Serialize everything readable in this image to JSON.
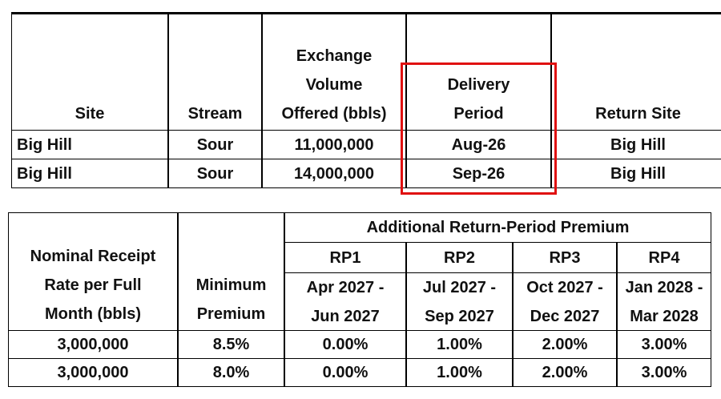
{
  "table1": {
    "header": [
      [
        "Site"
      ],
      [
        "Stream"
      ],
      [
        "Exchange",
        "Volume",
        "Offered (bbls)"
      ],
      [
        "Delivery",
        "Period"
      ],
      [
        "Return Site"
      ]
    ],
    "rows": [
      [
        "Big Hill",
        "Sour",
        "11,000,000",
        "Aug-26",
        "Big Hill"
      ],
      [
        "Big Hill",
        "Sour",
        "14,000,000",
        "Sep-26",
        "Big Hill"
      ]
    ]
  },
  "table2": {
    "header": [
      [
        "Nominal Receipt",
        "Rate per Full",
        "Month (bbls)"
      ],
      [
        "Minimum",
        "Premium"
      ]
    ],
    "group_header": "Additional Return-Period Premium",
    "periods": [
      {
        "name": "RP1",
        "range": [
          "Apr 2027 -",
          "Jun 2027"
        ]
      },
      {
        "name": "RP2",
        "range": [
          "Jul 2027 -",
          "Sep 2027"
        ]
      },
      {
        "name": "RP3",
        "range": [
          "Oct 2027 -",
          "Dec 2027"
        ]
      },
      {
        "name": "RP4",
        "range": [
          "Jan 2028 -",
          "Mar 2028"
        ]
      }
    ],
    "rows": [
      [
        "3,000,000",
        "8.5%",
        "0.00%",
        "1.00%",
        "2.00%",
        "3.00%"
      ],
      [
        "3,000,000",
        "8.0%",
        "0.00%",
        "1.00%",
        "2.00%",
        "3.00%"
      ]
    ]
  }
}
